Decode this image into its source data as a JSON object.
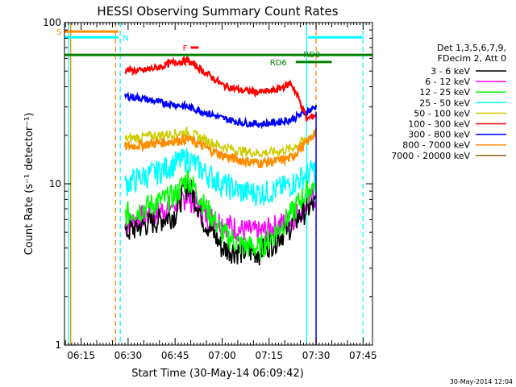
{
  "chart_data": {
    "type": "line",
    "title": "HESSI Observing Summary Count Rates",
    "xlabel": "Start Time (30-May-14 06:09:42)",
    "ylabel": "Count Rate (s⁻¹ detector⁻¹)",
    "yscale": "log",
    "ylim": [
      1,
      100
    ],
    "xlim_minutes": [
      "06:09:42",
      "07:48:00"
    ],
    "x_ticks": [
      "06:15",
      "06:30",
      "06:45",
      "07:00",
      "07:15",
      "07:30",
      "07:45"
    ],
    "y_ticks": [
      "1",
      "10",
      "100"
    ],
    "timestamp": "30-May-2014 12:04",
    "legend": {
      "placement": "right",
      "header": [
        "Det 1,3,5,6,7,9,",
        "FDecim 2, Att 0"
      ],
      "entries": [
        {
          "label": "3 - 6 keV",
          "color": "#000000"
        },
        {
          "label": "6 - 12 keV",
          "color": "#ff00ff"
        },
        {
          "label": "12 - 25 keV",
          "color": "#00ff00"
        },
        {
          "label": "25 - 50 keV",
          "color": "#00ffff"
        },
        {
          "label": "50 - 100 keV",
          "color": "#cccc00"
        },
        {
          "label": "100 - 300 keV",
          "color": "#ff0000"
        },
        {
          "label": "300 - 800 keV",
          "color": "#0000ff"
        },
        {
          "label": "800 - 7000 keV",
          "color": "#ff8c00"
        },
        {
          "label": "7000 - 20000 keV",
          "color": "#8b6914"
        }
      ]
    },
    "flags": [
      {
        "label": "S",
        "color": "#ff8c00",
        "start": "06:09:42",
        "end": "06:27:00",
        "y": 88
      },
      {
        "label": "N",
        "color": "#00ffff",
        "start": "06:09:42",
        "end": "06:27:00",
        "y": 81
      },
      {
        "label": "N",
        "color": "#00ffff",
        "start": "07:27:30",
        "end": "07:45:00",
        "y": 81
      },
      {
        "label": "F",
        "color": "#ff0000",
        "start": "06:50:00",
        "end": "06:52:30",
        "y": 70
      },
      {
        "label": "",
        "color": "#008000",
        "start": "06:09:42",
        "end": "07:48:00",
        "y": 63
      },
      {
        "label": "RD0",
        "color": "#008000",
        "start": "07:27:30",
        "end": "07:35:00",
        "y": 57
      },
      {
        "label": "RD6",
        "color": "#008000",
        "start": "07:23:30",
        "end": "07:30:00",
        "y": 57
      }
    ],
    "vlines": [
      {
        "time": "06:11:00",
        "color": "#00ffff",
        "style": "solid"
      },
      {
        "time": "06:11:40",
        "color": "#ff8c00",
        "style": "solid"
      },
      {
        "time": "06:26:00",
        "color": "#ff8c00",
        "style": "dashed"
      },
      {
        "time": "06:27:30",
        "color": "#00ffff",
        "style": "dashed"
      },
      {
        "time": "07:27:00",
        "color": "#00ffff",
        "style": "solid"
      },
      {
        "time": "07:30:00",
        "color": "#ff8c00",
        "style": "dashed"
      },
      {
        "time": "07:45:00",
        "color": "#00ffff",
        "style": "dashed"
      }
    ],
    "series_x": [
      "06:29",
      "06:34",
      "06:40",
      "06:45",
      "06:49",
      "06:54",
      "07:00",
      "07:06",
      "07:12",
      "07:17",
      "07:22",
      "07:27",
      "07:30"
    ],
    "series": [
      {
        "name": "6 - 12 keV",
        "color": "#ff00ff",
        "values": [
          5.5,
          6.2,
          6.8,
          7.5,
          8.5,
          6.5,
          5.8,
          5.2,
          5.0,
          5.5,
          6.0,
          7.5,
          8.5
        ]
      },
      {
        "name": "3 - 6 keV",
        "color": "#000000",
        "values": [
          5.0,
          5.5,
          6.0,
          6.5,
          10.0,
          6.0,
          4.0,
          3.8,
          3.8,
          4.5,
          5.5,
          7.0,
          7.5
        ]
      },
      {
        "name": "12 - 25 keV",
        "color": "#00ff00",
        "values": [
          6.5,
          7.0,
          7.8,
          8.5,
          11.0,
          7.5,
          5.0,
          4.2,
          4.0,
          5.0,
          6.5,
          9.0,
          10.0
        ]
      },
      {
        "name": "25 - 50 keV",
        "color": "#00ffff",
        "values": [
          10.0,
          11.0,
          12.0,
          13.5,
          14.5,
          12.0,
          10.0,
          9.0,
          8.8,
          9.2,
          10.0,
          11.5,
          12.5
        ]
      },
      {
        "name": "50 - 100 keV",
        "color": "#cccc00",
        "values": [
          19.0,
          19.5,
          20.0,
          20.5,
          21.0,
          19.0,
          17.0,
          16.0,
          15.5,
          15.8,
          16.5,
          19.0,
          21.0
        ]
      },
      {
        "name": "800 - 7000 keV",
        "color": "#ff8c00",
        "values": [
          17.0,
          17.5,
          18.0,
          18.5,
          19.0,
          17.0,
          15.0,
          14.0,
          13.5,
          13.8,
          14.5,
          18.0,
          21.0
        ]
      },
      {
        "name": "300 - 800 keV",
        "color": "#0000ff",
        "values": [
          35.0,
          34.0,
          32.0,
          31.0,
          30.0,
          28.0,
          25.5,
          24.0,
          23.5,
          24.0,
          25.0,
          28.0,
          30.0
        ]
      },
      {
        "name": "100 - 300 keV",
        "color": "#ff0000",
        "values": [
          51.0,
          50.0,
          53.0,
          57.0,
          58.0,
          50.0,
          41.0,
          38.0,
          37.0,
          38.0,
          42.0,
          25.0,
          27.0
        ]
      }
    ]
  }
}
